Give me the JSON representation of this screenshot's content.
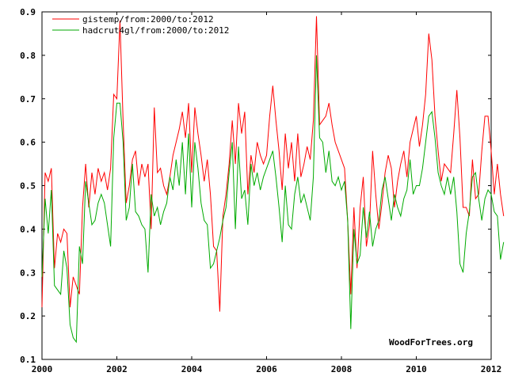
{
  "chart_data": {
    "type": "line",
    "watermark": "WoodForTrees.org",
    "xlim": [
      2000,
      2012
    ],
    "ylim": [
      0.1,
      0.9
    ],
    "x_ticks": [
      2000,
      2002,
      2004,
      2006,
      2008,
      2010,
      2012
    ],
    "x_tick_labels": [
      "2000",
      "2002",
      "2004",
      "2006",
      "2008",
      "2010",
      "2012"
    ],
    "y_ticks": [
      0.1,
      0.2,
      0.3,
      0.4,
      0.5,
      0.6,
      0.7,
      0.8,
      0.9
    ],
    "y_tick_labels": [
      "0.1",
      "0.2",
      "0.3",
      "0.4",
      "0.5",
      "0.6",
      "0.7",
      "0.8",
      "0.9"
    ],
    "legend_position": "top-left",
    "grid": false,
    "x_start": 2000.0,
    "x_step": 0.0833333,
    "series": [
      {
        "name": "gistemp/from:2000/to:2012",
        "color": "#ff0000",
        "values": [
          0.22,
          0.53,
          0.51,
          0.54,
          0.31,
          0.39,
          0.37,
          0.4,
          0.39,
          0.22,
          0.29,
          0.27,
          0.25,
          0.45,
          0.55,
          0.45,
          0.53,
          0.48,
          0.54,
          0.51,
          0.53,
          0.49,
          0.54,
          0.71,
          0.7,
          0.88,
          0.65,
          0.46,
          0.5,
          0.56,
          0.58,
          0.5,
          0.55,
          0.52,
          0.55,
          0.4,
          0.68,
          0.53,
          0.54,
          0.5,
          0.48,
          0.52,
          0.57,
          0.6,
          0.63,
          0.67,
          0.61,
          0.69,
          0.53,
          0.68,
          0.62,
          0.57,
          0.51,
          0.56,
          0.48,
          0.36,
          0.35,
          0.21,
          0.43,
          0.48,
          0.55,
          0.65,
          0.55,
          0.69,
          0.62,
          0.67,
          0.48,
          0.57,
          0.53,
          0.6,
          0.57,
          0.55,
          0.57,
          0.66,
          0.73,
          0.65,
          0.58,
          0.49,
          0.62,
          0.54,
          0.6,
          0.51,
          0.62,
          0.52,
          0.55,
          0.59,
          0.56,
          0.65,
          0.89,
          0.64,
          0.65,
          0.66,
          0.69,
          0.64,
          0.6,
          0.58,
          0.56,
          0.54,
          0.42,
          0.25,
          0.45,
          0.31,
          0.45,
          0.52,
          0.36,
          0.41,
          0.58,
          0.48,
          0.4,
          0.46,
          0.53,
          0.57,
          0.54,
          0.45,
          0.51,
          0.55,
          0.58,
          0.52,
          0.6,
          0.63,
          0.66,
          0.59,
          0.64,
          0.71,
          0.85,
          0.79,
          0.66,
          0.58,
          0.51,
          0.55,
          0.54,
          0.53,
          0.62,
          0.72,
          0.61,
          0.45,
          0.45,
          0.43,
          0.56,
          0.47,
          0.48,
          0.58,
          0.66,
          0.66,
          0.58,
          0.48,
          0.55,
          0.48,
          0.43
        ]
      },
      {
        "name": "hadcrut4gl/from:2000/to:2012",
        "color": "#00aa00",
        "values": [
          0.29,
          0.47,
          0.39,
          0.49,
          0.27,
          0.26,
          0.25,
          0.35,
          0.31,
          0.18,
          0.15,
          0.14,
          0.36,
          0.32,
          0.51,
          0.46,
          0.41,
          0.42,
          0.46,
          0.48,
          0.46,
          0.41,
          0.36,
          0.61,
          0.69,
          0.69,
          0.6,
          0.42,
          0.45,
          0.55,
          0.44,
          0.43,
          0.41,
          0.4,
          0.3,
          0.48,
          0.43,
          0.45,
          0.41,
          0.44,
          0.46,
          0.52,
          0.49,
          0.56,
          0.5,
          0.6,
          0.48,
          0.62,
          0.45,
          0.6,
          0.54,
          0.46,
          0.42,
          0.41,
          0.31,
          0.32,
          0.35,
          0.38,
          0.42,
          0.45,
          0.53,
          0.6,
          0.4,
          0.59,
          0.47,
          0.49,
          0.41,
          0.55,
          0.5,
          0.53,
          0.49,
          0.52,
          0.54,
          0.56,
          0.58,
          0.52,
          0.45,
          0.37,
          0.5,
          0.41,
          0.4,
          0.48,
          0.52,
          0.46,
          0.48,
          0.45,
          0.42,
          0.52,
          0.8,
          0.61,
          0.6,
          0.53,
          0.58,
          0.51,
          0.5,
          0.52,
          0.49,
          0.51,
          0.42,
          0.17,
          0.4,
          0.32,
          0.34,
          0.45,
          0.38,
          0.44,
          0.36,
          0.4,
          0.42,
          0.49,
          0.52,
          0.47,
          0.42,
          0.48,
          0.45,
          0.43,
          0.47,
          0.49,
          0.56,
          0.48,
          0.5,
          0.5,
          0.54,
          0.6,
          0.66,
          0.67,
          0.61,
          0.53,
          0.5,
          0.48,
          0.52,
          0.48,
          0.52,
          0.44,
          0.32,
          0.3,
          0.39,
          0.44,
          0.52,
          0.53,
          0.47,
          0.42,
          0.47,
          0.49,
          0.48,
          0.44,
          0.43,
          0.33,
          0.37
        ]
      }
    ]
  }
}
